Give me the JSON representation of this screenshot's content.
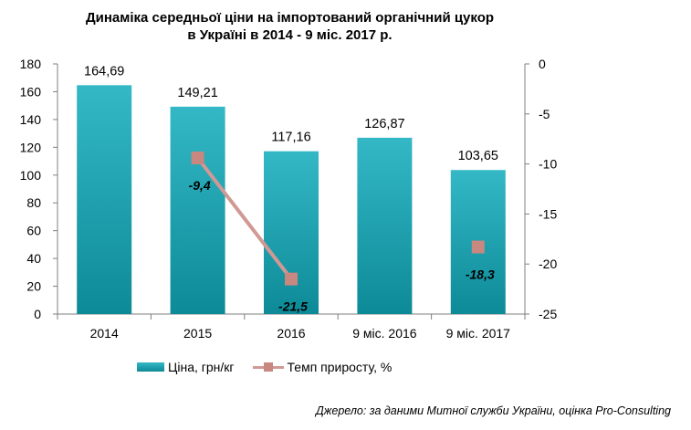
{
  "title": {
    "line1": "Динаміка середньої ціни на імпортований органічний цукор",
    "line2": "в Україні в 2014 - 9 міс. 2017 р."
  },
  "colors": {
    "bar_top": "#34b8c6",
    "bar_bottom": "#0d8a97",
    "line": "#d19993",
    "marker": "#c8877f",
    "axis": "#7f7f7f"
  },
  "legend": {
    "bar_label": "Ціна, грн/кг",
    "line_label": "Темп приросту, %"
  },
  "source": "Джерело: за даними Митної служби України, оцінка Pro-Consulting",
  "chart_data": {
    "type": "bar",
    "categories": [
      "2014",
      "2015",
      "2016",
      "9 міс. 2016",
      "9 міс. 2017"
    ],
    "series": [
      {
        "name": "Ціна, грн/кг",
        "type": "bar",
        "axis": "left",
        "values": [
          164.69,
          149.21,
          117.16,
          126.87,
          103.65
        ],
        "labels": [
          "164,69",
          "149,21",
          "117,16",
          "126,87",
          "103,65"
        ]
      },
      {
        "name": "Темп приросту, %",
        "type": "line",
        "axis": "right",
        "values": [
          null,
          -9.4,
          -21.5,
          null,
          -18.3
        ],
        "labels": [
          "",
          "-9,4",
          "-21,5",
          "",
          "-18,3"
        ]
      }
    ],
    "left_axis": {
      "ylim": [
        0,
        180
      ],
      "ticks": [
        0,
        20,
        40,
        60,
        80,
        100,
        120,
        140,
        160,
        180
      ]
    },
    "right_axis": {
      "ylim": [
        -25,
        0
      ],
      "ticks": [
        0,
        -5,
        -10,
        -15,
        -20,
        -25
      ]
    },
    "grid": false,
    "legend_position": "bottom"
  }
}
